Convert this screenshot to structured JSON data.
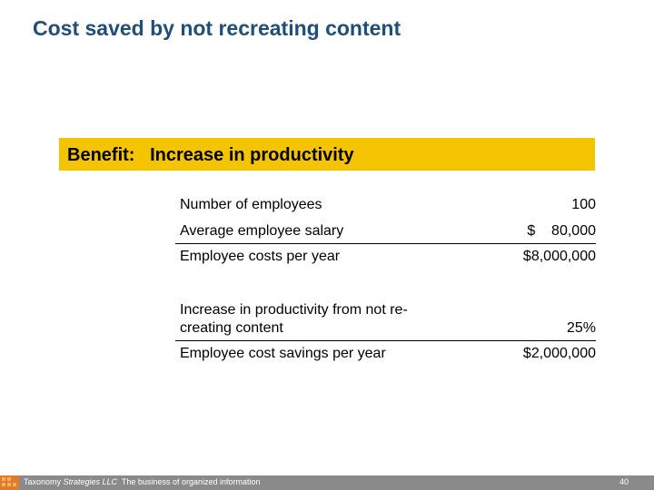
{
  "slide": {
    "title": "Cost saved by not recreating content"
  },
  "benefit": {
    "label": "Benefit:   Increase in productivity"
  },
  "rows": [
    {
      "label": "Number of employees",
      "value": "100"
    },
    {
      "label": "Average employee salary",
      "value": "$    80,000"
    },
    {
      "label": "Employee costs per year",
      "value": "$8,000,000"
    },
    {
      "label_line1": "Increase in productivity from not re-",
      "label_line2": "creating content",
      "value": "25%"
    },
    {
      "label": "Employee cost savings per year",
      "value": "$2,000,000"
    }
  ],
  "footer": {
    "company_prefix": "Taxonomy ",
    "company_italic": "Strategies LLC",
    "tagline": "  The business of organized information",
    "page_number": "40"
  },
  "colors": {
    "title": "#1f4e79",
    "benefit_bar": "#f5c400",
    "footer_bar": "#8a8a8a",
    "logo": "#e07b2a"
  }
}
